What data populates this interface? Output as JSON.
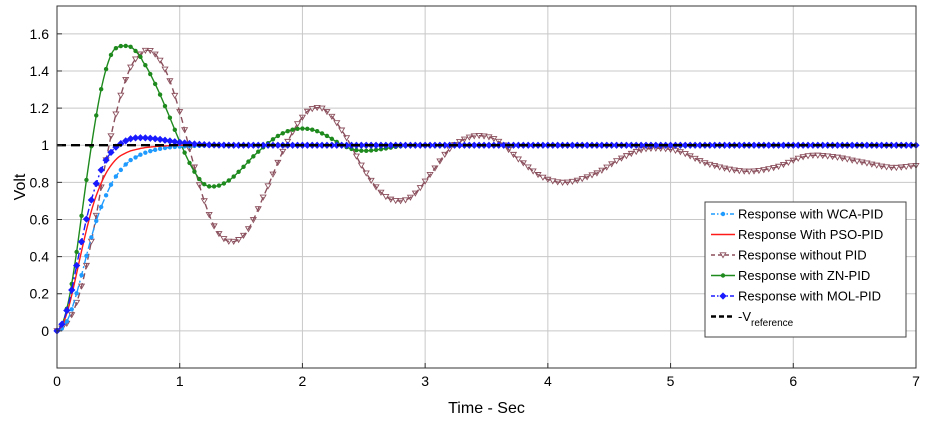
{
  "chart_data": {
    "type": "line",
    "title": "",
    "xlabel": "Time - Sec",
    "ylabel": "Volt",
    "xlim": [
      0,
      7
    ],
    "ylim": [
      -0.2,
      1.75
    ],
    "xticks": [
      "0",
      "1",
      "2",
      "3",
      "4",
      "5",
      "6",
      "7"
    ],
    "yticks": [
      "0",
      "0.2",
      "0.4",
      "0.6",
      "0.8",
      "1",
      "1.2",
      "1.4",
      "1.6"
    ],
    "grid": true,
    "legend_position": "right",
    "series": [
      {
        "name": "Response with WCA-PID",
        "color": "#1f9bff",
        "style": "dash-dot",
        "marker": "dot",
        "x": [
          0,
          0.05,
          0.1,
          0.15,
          0.2,
          0.25,
          0.3,
          0.35,
          0.4,
          0.45,
          0.5,
          0.55,
          0.6,
          0.7,
          0.8,
          0.9,
          1.0,
          1.2,
          1.5,
          2.0,
          3.0,
          4.0,
          5.0,
          6.0,
          7.0
        ],
        "y": [
          0,
          0.02,
          0.08,
          0.18,
          0.3,
          0.43,
          0.55,
          0.65,
          0.73,
          0.8,
          0.85,
          0.89,
          0.92,
          0.955,
          0.975,
          0.987,
          0.993,
          0.998,
          1.0,
          1.0,
          1.0,
          1.0,
          1.0,
          1.0,
          1.0
        ]
      },
      {
        "name": "Response With PSO-PID",
        "color": "#ff1a1a",
        "style": "solid",
        "marker": "none",
        "x": [
          0,
          0.05,
          0.1,
          0.15,
          0.2,
          0.25,
          0.3,
          0.35,
          0.4,
          0.45,
          0.5,
          0.55,
          0.6,
          0.7,
          0.8,
          0.9,
          1.0,
          1.2,
          1.5,
          2.0,
          3.0,
          4.0,
          5.0,
          6.0,
          7.0
        ],
        "y": [
          0,
          0.04,
          0.14,
          0.28,
          0.43,
          0.57,
          0.69,
          0.78,
          0.85,
          0.9,
          0.935,
          0.955,
          0.97,
          0.985,
          0.993,
          0.997,
          1.0,
          1.0,
          1.0,
          1.0,
          1.0,
          1.0,
          1.0,
          1.0,
          1.0
        ]
      },
      {
        "name": "Response without PID",
        "color": "#8a4f5c",
        "style": "dashed",
        "marker": "triangle",
        "x": [
          0,
          0.1,
          0.2,
          0.3,
          0.4,
          0.5,
          0.6,
          0.7,
          0.75,
          0.8,
          0.9,
          1.0,
          1.1,
          1.2,
          1.3,
          1.42,
          1.55,
          1.7,
          1.85,
          2.0,
          2.1,
          2.2,
          2.35,
          2.5,
          2.65,
          2.78,
          2.9,
          3.05,
          3.2,
          3.35,
          3.47,
          3.6,
          3.75,
          3.95,
          4.15,
          4.4,
          4.6,
          4.8,
          5.05,
          5.3,
          5.6,
          5.85,
          6.1,
          6.3,
          6.55,
          6.8,
          7.0
        ],
        "y": [
          0,
          0.06,
          0.24,
          0.55,
          0.92,
          1.22,
          1.42,
          1.5,
          1.51,
          1.49,
          1.38,
          1.18,
          0.93,
          0.7,
          0.54,
          0.48,
          0.54,
          0.75,
          0.98,
          1.15,
          1.2,
          1.18,
          1.05,
          0.87,
          0.74,
          0.7,
          0.73,
          0.85,
          0.98,
          1.04,
          1.05,
          1.02,
          0.93,
          0.83,
          0.8,
          0.85,
          0.93,
          0.98,
          0.97,
          0.9,
          0.86,
          0.88,
          0.94,
          0.94,
          0.91,
          0.88,
          0.89
        ]
      },
      {
        "name": "Response with ZN-PID",
        "color": "#1e8a1e",
        "style": "solid",
        "marker": "dot",
        "x": [
          0,
          0.05,
          0.1,
          0.15,
          0.2,
          0.25,
          0.3,
          0.35,
          0.4,
          0.45,
          0.5,
          0.55,
          0.6,
          0.65,
          0.7,
          0.8,
          0.9,
          1.0,
          1.1,
          1.2,
          1.3,
          1.4,
          1.5,
          1.6,
          1.7,
          1.8,
          1.9,
          2.0,
          2.1,
          2.2,
          2.3,
          2.4,
          2.5,
          2.6,
          2.7,
          2.8,
          2.9,
          3.0,
          3.2,
          3.5,
          4.0,
          5.0,
          6.0,
          7.0
        ],
        "y": [
          0,
          0.05,
          0.18,
          0.38,
          0.62,
          0.86,
          1.08,
          1.27,
          1.41,
          1.5,
          1.53,
          1.535,
          1.53,
          1.5,
          1.45,
          1.33,
          1.18,
          1.02,
          0.88,
          0.79,
          0.78,
          0.81,
          0.87,
          0.94,
          1.0,
          1.05,
          1.08,
          1.09,
          1.08,
          1.05,
          1.01,
          0.98,
          0.97,
          0.975,
          0.985,
          0.995,
          1.0,
          1.0,
          1.0,
          1.0,
          1.0,
          1.0,
          1.0,
          1.0
        ]
      },
      {
        "name": "Response with MOL-PID",
        "color": "#1a1aff",
        "style": "dash-dot",
        "marker": "diamond",
        "x": [
          0,
          0.05,
          0.1,
          0.15,
          0.2,
          0.25,
          0.3,
          0.35,
          0.4,
          0.45,
          0.5,
          0.55,
          0.6,
          0.65,
          0.7,
          0.75,
          0.8,
          0.9,
          1.0,
          1.1,
          1.2,
          1.4,
          1.6,
          2.0,
          3.0,
          4.0,
          5.0,
          6.0,
          7.0
        ],
        "y": [
          0,
          0.05,
          0.16,
          0.32,
          0.48,
          0.63,
          0.75,
          0.85,
          0.92,
          0.97,
          1.0,
          1.02,
          1.035,
          1.04,
          1.04,
          1.038,
          1.035,
          1.025,
          1.015,
          1.008,
          1.003,
          1.0,
          1.0,
          1.0,
          1.0,
          1.0,
          1.0,
          1.0,
          1.0
        ]
      },
      {
        "name": "-V",
        "name_sub": "reference",
        "color": "#000000",
        "style": "dashed-bold",
        "marker": "none",
        "x": [
          0,
          7
        ],
        "y": [
          1,
          1
        ]
      }
    ]
  }
}
